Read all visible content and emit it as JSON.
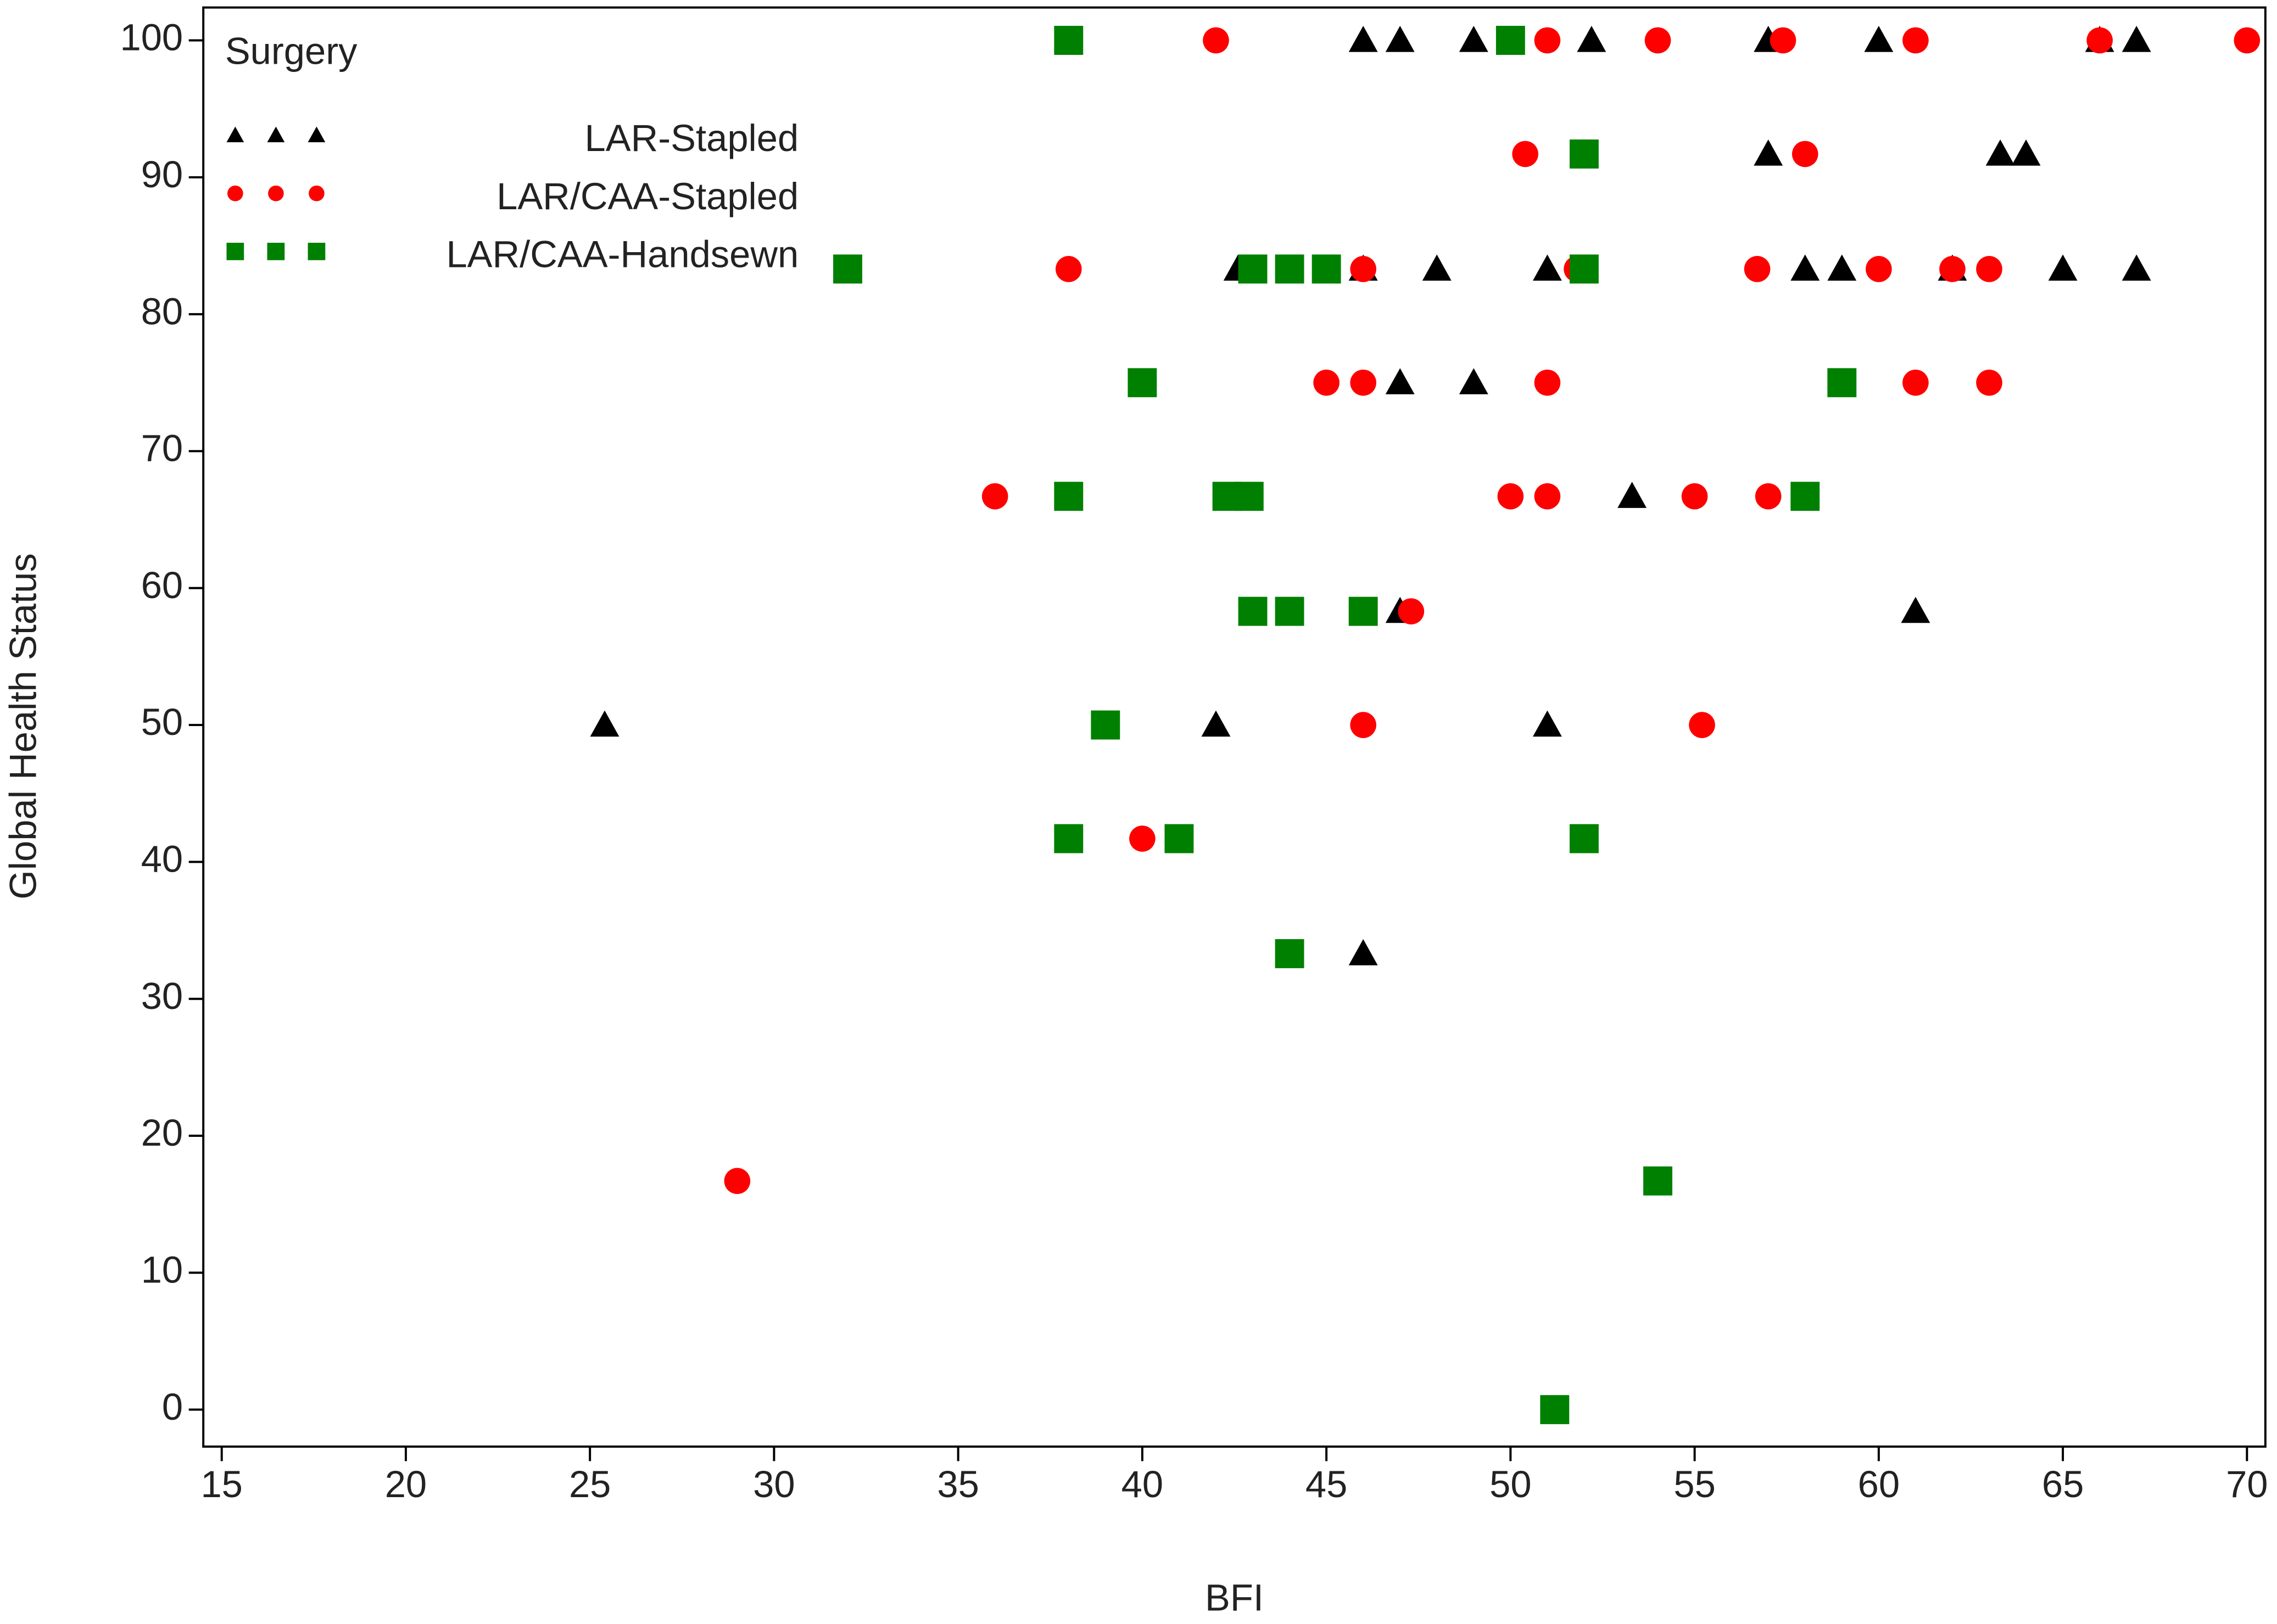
{
  "chart_data": {
    "type": "scatter",
    "x_label": "BFI",
    "y_label": "Global Health Status",
    "legend_title": "Surgery",
    "legend_position": "upper-left",
    "xlim": [
      14.5,
      70.5
    ],
    "ylim": [
      -2.7,
      102.4
    ],
    "xticks": [
      15,
      20,
      25,
      30,
      35,
      40,
      45,
      50,
      55,
      60,
      65,
      70
    ],
    "yticks": [
      0,
      10,
      20,
      30,
      40,
      50,
      60,
      70,
      80,
      90,
      100
    ],
    "series": [
      {
        "name": "LAR-Stapled",
        "color": "#000000",
        "marker": "triangle",
        "x": [
          46,
          47,
          49,
          52.2,
          57,
          60,
          66,
          67,
          57,
          63.3,
          64,
          42.6,
          46,
          48,
          51,
          52,
          58,
          59,
          62,
          65,
          67,
          47,
          49,
          53.3,
          47,
          61,
          25.4,
          42,
          51,
          46
        ],
        "values": [
          100,
          100,
          100,
          100,
          100,
          100,
          100,
          100,
          91.7,
          91.7,
          91.7,
          83.3,
          83.3,
          83.3,
          83.3,
          83.3,
          83.3,
          83.3,
          83.3,
          83.3,
          83.3,
          75,
          75,
          66.7,
          58.3,
          58.3,
          50,
          50,
          50,
          33.3
        ]
      },
      {
        "name": "LAR/CAA-Stapled",
        "color": "#ff0000",
        "marker": "circle",
        "x": [
          42,
          51,
          54,
          57.4,
          61,
          66,
          70,
          50.4,
          58,
          38,
          46,
          51.8,
          56.7,
          60,
          62,
          63,
          45,
          46,
          51,
          61,
          63,
          36,
          50,
          51,
          55,
          57,
          47.3,
          46,
          55.2,
          40,
          29
        ],
        "values": [
          100,
          100,
          100,
          100,
          100,
          100,
          100,
          91.7,
          91.7,
          83.3,
          83.3,
          83.3,
          83.3,
          83.3,
          83.3,
          83.3,
          75,
          75,
          75,
          75,
          75,
          66.7,
          66.7,
          66.7,
          66.7,
          66.7,
          58.3,
          50,
          50,
          41.7,
          16.7
        ]
      },
      {
        "name": "LAR/CAA-Handsewn",
        "color": "#008000",
        "marker": "square",
        "x": [
          38,
          50,
          52,
          32,
          43,
          44,
          45,
          52,
          40,
          59,
          38,
          42.3,
          42.9,
          58,
          43,
          44,
          46,
          39,
          38,
          41,
          52,
          44,
          54,
          51.2
        ],
        "values": [
          100,
          100,
          91.7,
          83.3,
          83.3,
          83.3,
          83.3,
          83.3,
          75,
          75,
          66.7,
          66.7,
          66.7,
          66.7,
          58.3,
          58.3,
          58.3,
          50,
          41.7,
          41.7,
          41.7,
          33.3,
          16.7,
          0
        ]
      }
    ]
  }
}
